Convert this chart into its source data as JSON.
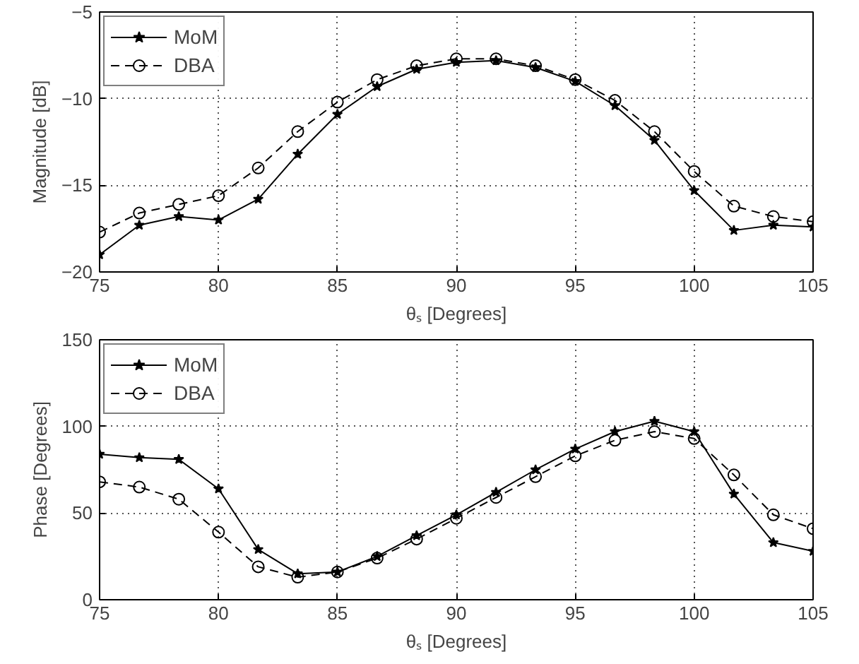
{
  "chart_data": [
    {
      "type": "line",
      "xlabel": "θₛ [Degrees]",
      "ylabel": "Magnitude [dB]",
      "xlim": [
        75,
        105
      ],
      "xticks": [
        75,
        80,
        85,
        90,
        95,
        100,
        105
      ],
      "ylim": [
        -20,
        -5
      ],
      "yticks": [
        -20,
        -15,
        -10,
        -5
      ],
      "grid": true,
      "legend": "top left",
      "x": [
        75,
        76.67,
        78.33,
        80,
        81.67,
        83.33,
        85,
        86.67,
        88.33,
        90,
        91.67,
        93.33,
        95,
        96.67,
        98.33,
        100,
        101.67,
        103.33,
        105
      ],
      "series": [
        {
          "name": "MoM",
          "color": "#000000",
          "marker": "star",
          "line_style": "solid",
          "values": [
            -19.0,
            -17.3,
            -16.8,
            -17.0,
            -15.8,
            -13.2,
            -10.9,
            -9.3,
            -8.3,
            -7.9,
            -7.8,
            -8.2,
            -9.0,
            -10.4,
            -12.4,
            -15.3,
            -17.6,
            -17.3,
            -17.4
          ]
        },
        {
          "name": "DBA",
          "color": "#000000",
          "marker": "circle",
          "line_style": "dashed",
          "values": [
            -17.7,
            -16.6,
            -16.1,
            -15.6,
            -14.0,
            -11.9,
            -10.2,
            -8.9,
            -8.1,
            -7.7,
            -7.7,
            -8.1,
            -8.9,
            -10.1,
            -11.9,
            -14.2,
            -16.2,
            -16.8,
            -17.1
          ]
        }
      ]
    },
    {
      "type": "line",
      "xlabel": "θₛ [Degrees]",
      "ylabel": "Phase [Degrees]",
      "xlim": [
        75,
        105
      ],
      "xticks": [
        75,
        80,
        85,
        90,
        95,
        100,
        105
      ],
      "ylim": [
        0,
        150
      ],
      "yticks": [
        0,
        50,
        100,
        150
      ],
      "grid": true,
      "legend": "top left",
      "x": [
        75,
        76.67,
        78.33,
        80,
        81.67,
        83.33,
        85,
        86.67,
        88.33,
        90,
        91.67,
        93.33,
        95,
        96.67,
        98.33,
        100,
        101.67,
        103.33,
        105
      ],
      "series": [
        {
          "name": "MoM",
          "color": "#000000",
          "marker": "star",
          "line_style": "solid",
          "values": [
            84,
            82,
            81,
            64,
            29,
            15,
            16,
            25,
            37,
            49,
            62,
            75,
            87,
            97,
            103,
            97,
            61,
            33,
            28
          ]
        },
        {
          "name": "DBA",
          "color": "#000000",
          "marker": "circle",
          "line_style": "dashed",
          "values": [
            68,
            65,
            58,
            39,
            19,
            13,
            16,
            24,
            35,
            47,
            59,
            71,
            83,
            92,
            97,
            93,
            72,
            49,
            41
          ]
        }
      ]
    }
  ]
}
